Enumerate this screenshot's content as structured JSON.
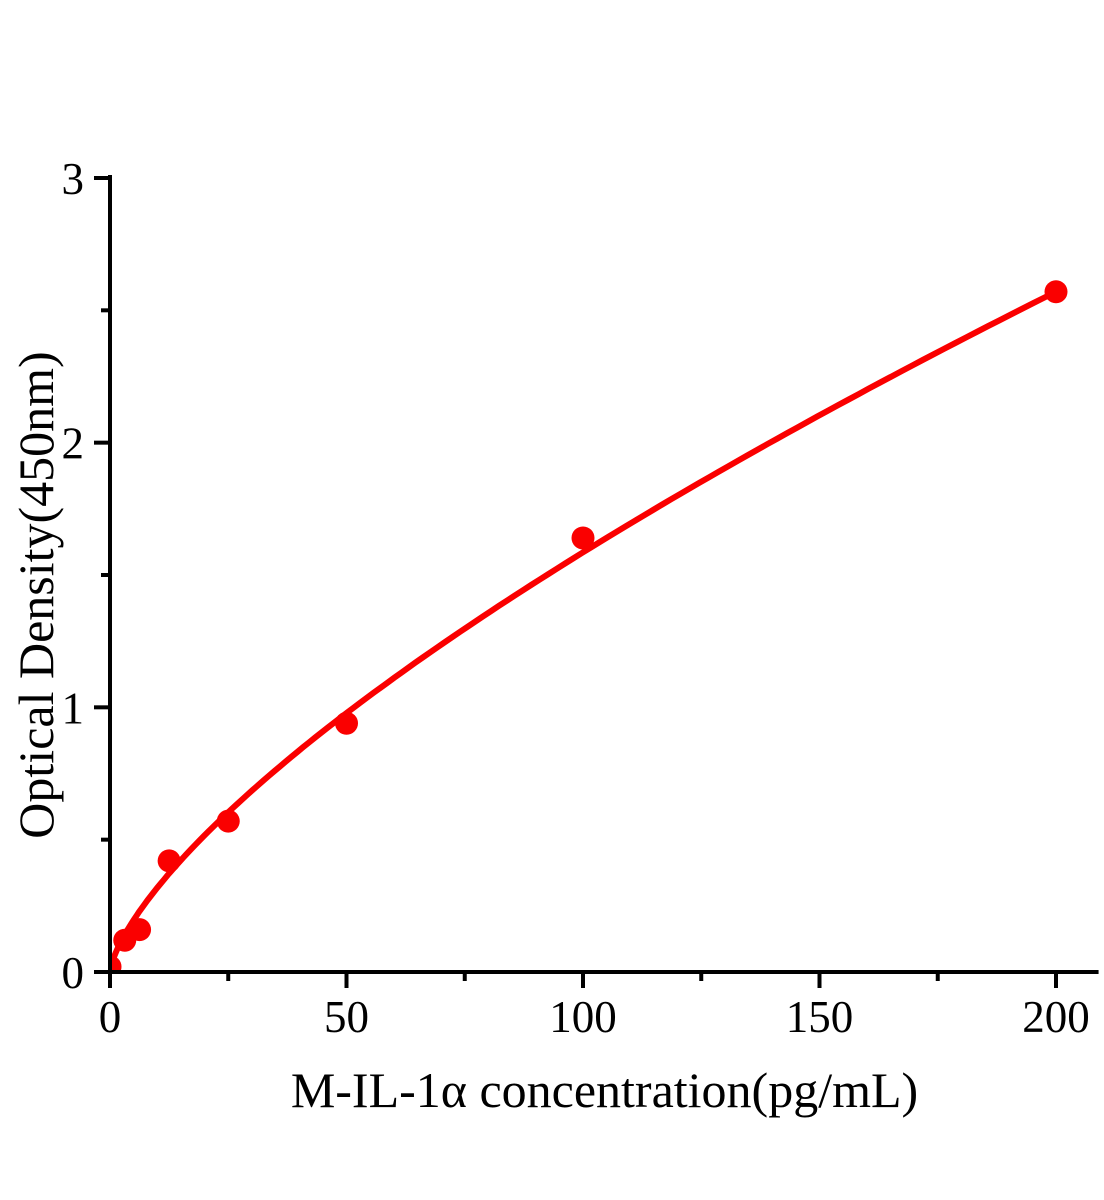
{
  "chart_data": {
    "type": "scatter",
    "title": "",
    "xlabel": "M-IL-1α concentration(pg/mL)",
    "ylabel": "Optical Density(450nm)",
    "xlim": [
      0,
      209
    ],
    "ylim": [
      0,
      3
    ],
    "grid": false,
    "legend": "none",
    "x_major_ticks": [
      0,
      50,
      100,
      150,
      200
    ],
    "x_tick_labels": [
      "0",
      "50",
      "100",
      "150",
      "200"
    ],
    "x_minor_ticks": [
      25,
      75,
      125,
      175
    ],
    "y_major_ticks": [
      0,
      1,
      2,
      3
    ],
    "y_tick_labels": [
      "0",
      "1",
      "2",
      "3"
    ],
    "y_minor_ticks": [
      0.5,
      1.5,
      2.5
    ],
    "series": [
      {
        "type": "scatter_with_fit",
        "color": "#FA0000",
        "points": [
          {
            "x": 0,
            "y": 0.02
          },
          {
            "x": 3.12,
            "y": 0.12
          },
          {
            "x": 6.25,
            "y": 0.16
          },
          {
            "x": 12.5,
            "y": 0.42
          },
          {
            "x": 25,
            "y": 0.57
          },
          {
            "x": 50,
            "y": 0.94
          },
          {
            "x": 100,
            "y": 1.64
          },
          {
            "x": 200,
            "y": 2.57
          }
        ],
        "fit_curve": {
          "model": "power",
          "a": 0.064,
          "b": 0.697,
          "x_start": 0,
          "x_end": 200
        }
      }
    ],
    "colors": {
      "series": "#FA0000",
      "axis": "#000000",
      "background": "#FFFFFF"
    }
  }
}
